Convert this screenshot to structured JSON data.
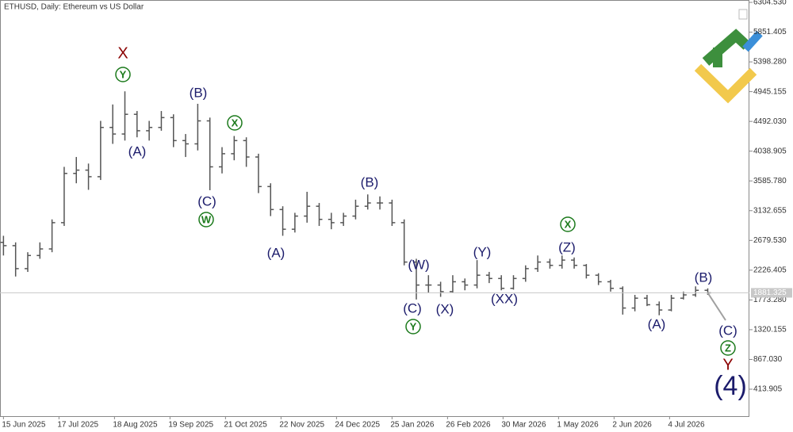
{
  "chart_data": {
    "type": "ohlc",
    "title": "ETHUSD, Daily:  Ethereum vs US Dollar",
    "x": [
      "15 Jun 2025",
      "22 Jun 2025",
      "29 Jun 2025",
      "6 Jul 2025",
      "13 Jul 2025",
      "20 Jul 2025",
      "27 Jul 2025",
      "3 Aug 2025",
      "10 Aug 2025",
      "17 Aug 2025",
      "24 Aug 2025",
      "31 Aug 2025",
      "7 Sep 2025",
      "14 Sep 2025",
      "21 Sep 2025",
      "28 Sep 2025",
      "5 Oct 2025",
      "12 Oct 2025",
      "19 Oct 2025",
      "26 Oct 2025",
      "2 Nov 2025",
      "9 Nov 2025",
      "16 Nov 2025",
      "23 Nov 2025",
      "30 Nov 2025",
      "7 Dec 2025",
      "14 Dec 2025",
      "21 Dec 2025",
      "28 Dec 2025",
      "4 Jan 2026",
      "11 Jan 2026",
      "18 Jan 2026",
      "25 Jan 2026",
      "1 Feb 2026",
      "8 Feb 2026",
      "15 Feb 2026",
      "22 Feb 2026",
      "1 Mar 2026",
      "8 Mar 2026",
      "15 Mar 2026",
      "22 Mar 2026",
      "29 Mar 2026",
      "5 Apr 2026",
      "12 Apr 2026",
      "19 Apr 2026",
      "26 Apr 2026",
      "3 May 2026",
      "10 May 2026",
      "17 May 2026",
      "24 May 2026",
      "31 May 2026",
      "7 Jun 2026",
      "14 Jun 2026",
      "21 Jun 2026",
      "28 Jun 2026",
      "5 Jul 2026",
      "12 Jul 2026",
      "19 Jul 2026",
      "26 Jul 2026"
    ],
    "open": [
      2650,
      2600,
      2250,
      2450,
      2550,
      2950,
      3700,
      3750,
      3650,
      4400,
      4300,
      4600,
      4350,
      4400,
      4550,
      4200,
      4150,
      4500,
      3800,
      4000,
      4200,
      3950,
      3500,
      3150,
      2850,
      3050,
      3200,
      3000,
      2950,
      3050,
      3200,
      3250,
      3250,
      2950,
      2350,
      2000,
      2000,
      1900,
      2050,
      2000,
      2150,
      2100,
      1950,
      2100,
      2250,
      2350,
      2300,
      2380,
      2300,
      2150,
      2050,
      1950,
      1650,
      1800,
      1700,
      1620,
      1800,
      1850,
      1920
    ],
    "high": [
      2750,
      2650,
      2500,
      2650,
      3000,
      3800,
      3950,
      3850,
      4500,
      4750,
      4950,
      4650,
      4500,
      4650,
      4600,
      4300,
      4760,
      4550,
      4100,
      4270,
      4250,
      4000,
      3550,
      3200,
      3100,
      3420,
      3250,
      3100,
      3100,
      3300,
      3380,
      3350,
      3300,
      3000,
      2400,
      2150,
      2050,
      2150,
      2100,
      2380,
      2200,
      2150,
      2150,
      2300,
      2450,
      2400,
      2450,
      2420,
      2320,
      2180,
      2080,
      1980,
      1850,
      1850,
      1750,
      1850,
      1900,
      1980,
      1950
    ],
    "low": [
      2450,
      2130,
      2200,
      2400,
      2500,
      2900,
      3550,
      3450,
      3600,
      4150,
      4200,
      4250,
      4200,
      4350,
      4100,
      3950,
      4050,
      3444,
      3700,
      3900,
      3800,
      3400,
      3050,
      2750,
      2800,
      2950,
      2900,
      2850,
      2900,
      3000,
      3150,
      3150,
      2900,
      2300,
      1780,
      1880,
      1820,
      1880,
      1920,
      1950,
      2030,
      1920,
      1930,
      2050,
      2200,
      2250,
      2250,
      2250,
      2100,
      2000,
      1900,
      1550,
      1600,
      1680,
      1540,
      1600,
      1780,
      1820,
      1850
    ],
    "close": [
      2600,
      2250,
      2450,
      2550,
      2950,
      3700,
      3750,
      3650,
      4400,
      4300,
      4600,
      4350,
      4400,
      4550,
      4200,
      4150,
      4500,
      3800,
      4000,
      4200,
      3950,
      3500,
      3150,
      2850,
      3050,
      3200,
      3000,
      2950,
      3050,
      3200,
      3250,
      3250,
      2950,
      2350,
      2000,
      2000,
      1900,
      2050,
      2000,
      2150,
      2100,
      1950,
      2100,
      2250,
      2350,
      2300,
      2380,
      2300,
      2150,
      2050,
      1950,
      1650,
      1800,
      1700,
      1620,
      1800,
      1850,
      1920,
      1881.325
    ],
    "color": "#555555",
    "xlim": [
      "13 Jun 2025",
      "19 Aug 2026"
    ],
    "xticks": [
      "15 Jun 2025",
      "17 Jul 2025",
      "18 Aug 2025",
      "19 Sep 2025",
      "21 Oct 2025",
      "22 Nov 2025",
      "24 Dec 2025",
      "25 Jan 2026",
      "26 Feb 2026",
      "30 Mar 2026",
      "1 May 2026",
      "2 Jun 2026",
      "4 Jul 2026"
    ],
    "ylim": [
      3.5,
      6328.7
    ],
    "yticks": [
      {
        "value": 6304.53,
        "label": "6304.530"
      },
      5851.405,
      {
        "value": 5398.28,
        "label": "5398.280"
      },
      4945.155,
      {
        "value": 4492.03,
        "label": "4492.030"
      },
      4038.905,
      {
        "value": 3585.78,
        "label": "3585.780"
      },
      3132.655,
      {
        "value": 2679.53,
        "label": "2679.530"
      },
      2226.405,
      {
        "value": 1773.28,
        "label": "1773.280"
      },
      1320.155,
      {
        "value": 867.03,
        "label": "867.030"
      },
      413.905
    ],
    "annotations": {
      "wave": [
        "(A)",
        "(B)",
        "(C)",
        "(A)",
        "(B)",
        "(W)",
        "(C)",
        "(X)",
        "(Y)",
        "(XX)",
        "(Z)",
        "(A)",
        "(B)",
        "(C)"
      ],
      "circled": [
        "Y",
        "X",
        "W",
        "Y",
        "X",
        "Z"
      ],
      "red": [
        "X",
        "Y"
      ],
      "degree": "(4)"
    }
  }
}
